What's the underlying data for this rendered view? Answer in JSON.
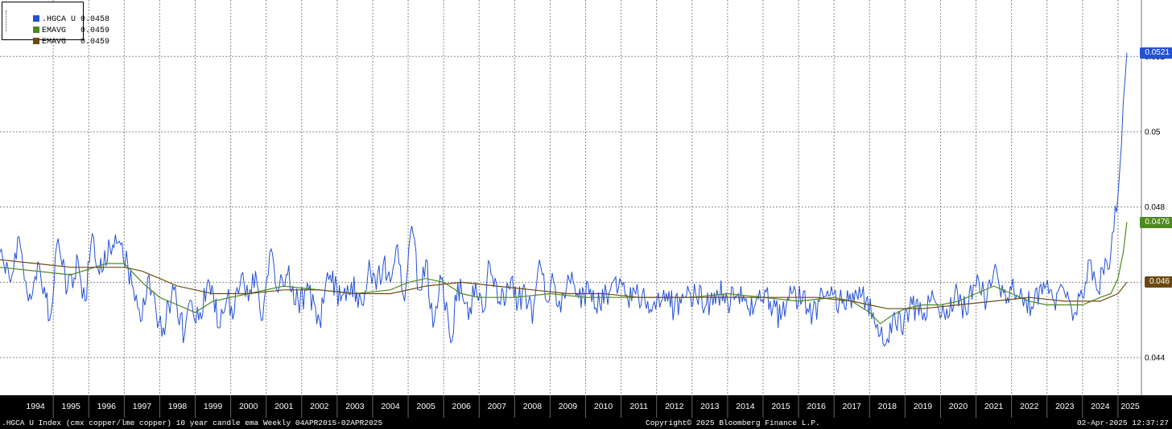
{
  "legend": {
    "items": [
      {
        "label": ".HGCA U",
        "value": "0.0458",
        "color": "#2451d6"
      },
      {
        "label": "EMAVG",
        "value": "0.0459",
        "color": "#4e8a1e"
      },
      {
        "label": "EMAVG",
        "value": "0.0459",
        "color": "#6b4a12"
      }
    ]
  },
  "badges": [
    {
      "text": "0.0521",
      "color": "#2451d6",
      "value": 0.0521
    },
    {
      "text": "0.0476",
      "color": "#4e8a1e",
      "value": 0.0476
    },
    {
      "text": "0.046",
      "color": "#6b4a12",
      "value": 0.046
    }
  ],
  "footer": {
    "left": ".HGCA U Index (cmx copper/lme copper) 10 year candle ema  Weekly 04APR2015-02APR2025",
    "center": "Copyright© 2025 Bloomberg Finance L.P.",
    "right": "02-Apr-2025 12:37:27"
  },
  "chart_data": {
    "type": "line",
    "ylim": [
      0.043,
      0.0535
    ],
    "y_ticks": [
      0.044,
      0.046,
      0.048,
      0.05,
      0.052
    ],
    "y_tick_labels": [
      "0.044",
      "0.046",
      "0.048",
      "0.05",
      "0.052"
    ],
    "x_tick_labels": [
      "1994",
      "1995",
      "1996",
      "1997",
      "1998",
      "1999",
      "2000",
      "2001",
      "2002",
      "2003",
      "2004",
      "2005",
      "2006",
      "2007",
      "2008",
      "2009",
      "2010",
      "2011",
      "2012",
      "2013",
      "2014",
      "2015",
      "2016",
      "2017",
      "2018",
      "2019",
      "2020",
      "2021",
      "2022",
      "2023",
      "2024",
      "2025"
    ],
    "grid": true,
    "legend_position": "top-left",
    "series": [
      {
        "name": ".HGCA U",
        "color": "#2451d6",
        "style": "weekly",
        "x": [
          1993.5,
          1993.8,
          1994.0,
          1994.3,
          1994.6,
          1994.9,
          1995.1,
          1995.4,
          1995.7,
          1995.9,
          1996.1,
          1996.3,
          1996.6,
          1996.9,
          1997.1,
          1997.3,
          1997.5,
          1997.7,
          1997.9,
          1998.1,
          1998.4,
          1998.7,
          1998.9,
          1999.1,
          1999.4,
          1999.7,
          1999.9,
          2000.1,
          2000.3,
          2000.5,
          2000.7,
          2000.9,
          2001.1,
          2001.3,
          2001.6,
          2001.9,
          2002.2,
          2002.5,
          2002.8,
          2003.1,
          2003.4,
          2003.7,
          2003.9,
          2004.1,
          2004.3,
          2004.5,
          2004.7,
          2004.9,
          2005.1,
          2005.3,
          2005.5,
          2005.7,
          2005.9,
          2006.0,
          2006.2,
          2006.4,
          2006.7,
          2006.9,
          2007.1,
          2007.3,
          2007.6,
          2007.9,
          2008.1,
          2008.3,
          2008.5,
          2008.7,
          2008.9,
          2009.1,
          2009.3,
          2009.5,
          2009.8,
          2010.1,
          2010.4,
          2010.7,
          2011.0,
          2011.3,
          2011.6,
          2011.9,
          2012.2,
          2012.5,
          2012.8,
          2013.1,
          2013.4,
          2013.7,
          2014.0,
          2014.3,
          2014.6,
          2014.9,
          2015.2,
          2015.5,
          2015.8,
          2016.1,
          2016.4,
          2016.7,
          2017.0,
          2017.3,
          2017.6,
          2017.9,
          2018.1,
          2018.3,
          2018.5,
          2018.7,
          2018.9,
          2019.2,
          2019.5,
          2019.8,
          2020.1,
          2020.4,
          2020.7,
          2021.0,
          2021.3,
          2021.5,
          2021.7,
          2022.0,
          2022.3,
          2022.6,
          2022.9,
          2023.2,
          2023.5,
          2023.8,
          2024.0,
          2024.2,
          2024.4,
          2024.6,
          2024.8,
          2025.0,
          2025.1,
          2025.15,
          2025.2,
          2025.25
        ],
        "y": [
          0.0468,
          0.046,
          0.0472,
          0.0455,
          0.0465,
          0.045,
          0.047,
          0.0458,
          0.0466,
          0.0455,
          0.0473,
          0.0462,
          0.0469,
          0.047,
          0.0465,
          0.0455,
          0.045,
          0.0462,
          0.0452,
          0.0448,
          0.0458,
          0.0446,
          0.0455,
          0.045,
          0.046,
          0.0448,
          0.0456,
          0.0452,
          0.0462,
          0.0455,
          0.0463,
          0.045,
          0.0468,
          0.0458,
          0.0462,
          0.0455,
          0.0458,
          0.045,
          0.0462,
          0.0455,
          0.046,
          0.0454,
          0.0466,
          0.0458,
          0.0465,
          0.046,
          0.047,
          0.0455,
          0.0475,
          0.0458,
          0.0466,
          0.0448,
          0.0462,
          0.0456,
          0.0444,
          0.046,
          0.045,
          0.046,
          0.0452,
          0.0465,
          0.0454,
          0.0461,
          0.0455,
          0.0458,
          0.0449,
          0.0466,
          0.0455,
          0.046,
          0.0452,
          0.0462,
          0.0456,
          0.0457,
          0.0454,
          0.0458,
          0.046,
          0.0455,
          0.0457,
          0.0454,
          0.0458,
          0.0453,
          0.0456,
          0.0457,
          0.0454,
          0.0458,
          0.0455,
          0.0457,
          0.0453,
          0.0458,
          0.0455,
          0.045,
          0.0457,
          0.0455,
          0.0452,
          0.0456,
          0.0457,
          0.0453,
          0.0458,
          0.0455,
          0.0452,
          0.0446,
          0.0445,
          0.0452,
          0.0447,
          0.0454,
          0.045,
          0.0456,
          0.0452,
          0.0457,
          0.0453,
          0.0459,
          0.0455,
          0.0463,
          0.0456,
          0.0458,
          0.0456,
          0.0453,
          0.046,
          0.0455,
          0.0457,
          0.0452,
          0.0456,
          0.0466,
          0.0458,
          0.0462,
          0.0468,
          0.0483,
          0.0497,
          0.0508,
          0.0514,
          0.0521
        ]
      },
      {
        "name": "EMAVG",
        "color": "#4e8a1e",
        "x": [
          1993.5,
          1994.5,
          1995.5,
          1996.5,
          1997.0,
          1997.5,
          1998.0,
          1998.5,
          1999.0,
          1999.5,
          2000.5,
          2001.5,
          2002.5,
          2003.5,
          2004.5,
          2005.0,
          2005.5,
          2006.0,
          2006.5,
          2007.0,
          2008.0,
          2009.0,
          2010.0,
          2011.0,
          2012.0,
          2013.0,
          2014.0,
          2015.0,
          2016.0,
          2017.0,
          2017.5,
          2018.0,
          2018.3,
          2018.6,
          2019.0,
          2019.5,
          2020.0,
          2020.5,
          2021.0,
          2021.5,
          2022.0,
          2022.5,
          2023.0,
          2023.5,
          2024.0,
          2024.5,
          2024.8,
          2025.0,
          2025.15,
          2025.25
        ],
        "y": [
          0.0464,
          0.0463,
          0.0462,
          0.0465,
          0.0465,
          0.046,
          0.0456,
          0.0454,
          0.0452,
          0.0455,
          0.0457,
          0.0459,
          0.0458,
          0.0457,
          0.0458,
          0.046,
          0.0461,
          0.046,
          0.0457,
          0.0456,
          0.0456,
          0.0457,
          0.0456,
          0.0456,
          0.0456,
          0.0456,
          0.0457,
          0.0456,
          0.0455,
          0.0456,
          0.0455,
          0.0452,
          0.0449,
          0.0451,
          0.0453,
          0.0454,
          0.0454,
          0.0455,
          0.0457,
          0.0459,
          0.0457,
          0.0455,
          0.0454,
          0.0454,
          0.0454,
          0.0456,
          0.0457,
          0.0461,
          0.0468,
          0.0476
        ]
      },
      {
        "name": "EMAVG",
        "color": "#6b4a12",
        "x": [
          1993.5,
          1994.5,
          1995.5,
          1996.5,
          1997.0,
          1997.5,
          1998.0,
          1998.5,
          1999.0,
          1999.5,
          2000.5,
          2001.5,
          2002.5,
          2003.5,
          2004.5,
          2005.5,
          2006.5,
          2007.5,
          2008.5,
          2009.5,
          2010.5,
          2011.5,
          2012.5,
          2013.5,
          2014.5,
          2015.5,
          2016.5,
          2017.5,
          2018.0,
          2018.5,
          2019.0,
          2019.5,
          2020.5,
          2021.5,
          2022.5,
          2023.5,
          2024.0,
          2024.5,
          2025.0,
          2025.25
        ],
        "y": [
          0.0466,
          0.0465,
          0.0464,
          0.0464,
          0.0464,
          0.0463,
          0.0461,
          0.0459,
          0.0458,
          0.0457,
          0.0457,
          0.0458,
          0.0458,
          0.0457,
          0.0457,
          0.0459,
          0.046,
          0.0459,
          0.0458,
          0.0457,
          0.0457,
          0.0456,
          0.0456,
          0.0456,
          0.0456,
          0.0456,
          0.0456,
          0.0455,
          0.0454,
          0.0453,
          0.0453,
          0.0453,
          0.0454,
          0.0455,
          0.0456,
          0.0455,
          0.0455,
          0.0455,
          0.0457,
          0.046
        ]
      }
    ]
  }
}
